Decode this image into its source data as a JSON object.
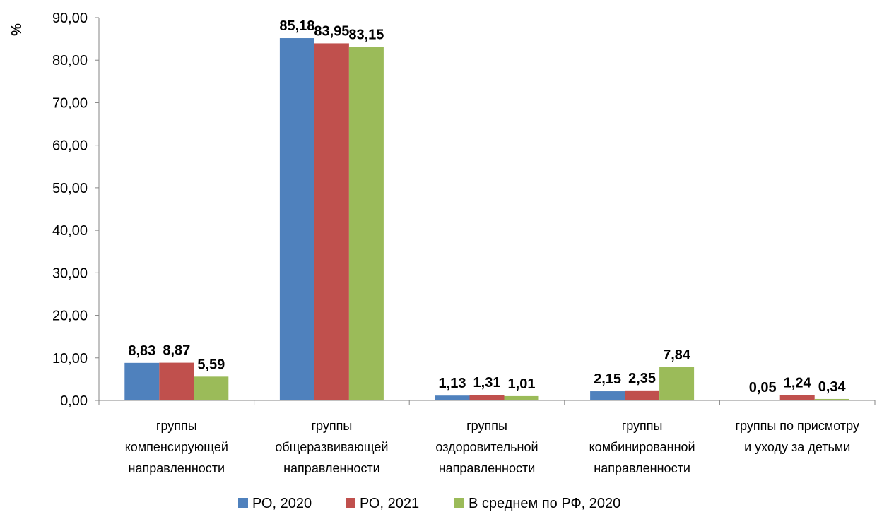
{
  "chart_data": {
    "type": "bar",
    "ylabel": "%",
    "ylim": [
      0,
      90
    ],
    "ytick_step": 10,
    "ytick_labels": [
      "0,00",
      "10,00",
      "20,00",
      "30,00",
      "40,00",
      "50,00",
      "60,00",
      "70,00",
      "80,00",
      "90,00"
    ],
    "grid": false,
    "legend_position": "bottom",
    "categories": [
      [
        "группы",
        "компенсирующей",
        "направленности"
      ],
      [
        "группы",
        "общеразвивающей",
        "направленности"
      ],
      [
        "группы",
        "оздоровительной",
        "направленности"
      ],
      [
        "группы",
        "комбинированной",
        "направленности"
      ],
      [
        "группы по присмотру",
        "и уходу за детьми"
      ]
    ],
    "series": [
      {
        "name": "РО, 2020",
        "color": "#4F81BD",
        "values": [
          8.83,
          85.18,
          1.13,
          2.15,
          0.05
        ],
        "labels": [
          "8,83",
          "85,18",
          "1,13",
          "2,15",
          "0,05"
        ]
      },
      {
        "name": "РО, 2021",
        "color": "#C0504D",
        "values": [
          8.87,
          83.95,
          1.31,
          2.35,
          1.24
        ],
        "labels": [
          "8,87",
          "83,95",
          "1,31",
          "2,35",
          "1,24"
        ]
      },
      {
        "name": "В среднем по РФ, 2020",
        "color": "#9BBB59",
        "values": [
          5.59,
          83.15,
          1.01,
          7.84,
          0.34
        ],
        "labels": [
          "5,59",
          "83,15",
          "1,01",
          "7,84",
          "0,34"
        ]
      }
    ]
  }
}
